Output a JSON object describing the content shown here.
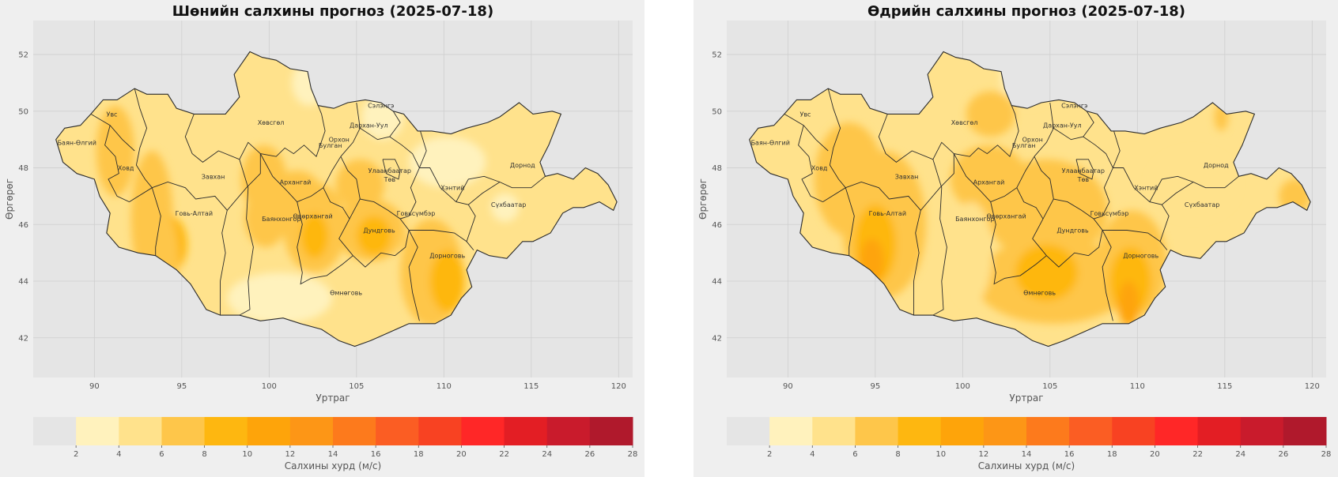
{
  "maps": [
    {
      "title": "Шөнийн салхины прогноз (2025-07-18)",
      "xlabel": "Уртраг",
      "ylabel": "Өргөрөг",
      "blobs": [
        {
          "lon": 91.2,
          "lat": 48.6,
          "rx": 1.1,
          "ry": 1.6,
          "level": 6
        },
        {
          "lon": 93.3,
          "lat": 46.2,
          "rx": 1.2,
          "ry": 2.4,
          "level": 6
        },
        {
          "lon": 94.3,
          "lat": 45.3,
          "rx": 1.0,
          "ry": 1.0,
          "level": 8
        },
        {
          "lon": 94.0,
          "lat": 44.8,
          "rx": 0.8,
          "ry": 1.6,
          "level": 6
        },
        {
          "lon": 99.7,
          "lat": 47.6,
          "rx": 1.3,
          "ry": 1.2,
          "level": 6
        },
        {
          "lon": 99.8,
          "lat": 46.2,
          "rx": 1.2,
          "ry": 1.0,
          "level": 6
        },
        {
          "lon": 101.6,
          "lat": 47.1,
          "rx": 1.4,
          "ry": 0.8,
          "level": 6
        },
        {
          "lon": 102.6,
          "lat": 45.9,
          "rx": 1.8,
          "ry": 1.6,
          "level": 6
        },
        {
          "lon": 102.6,
          "lat": 45.6,
          "rx": 0.8,
          "ry": 0.8,
          "level": 8
        },
        {
          "lon": 105.2,
          "lat": 47.4,
          "rx": 1.4,
          "ry": 0.9,
          "level": 6
        },
        {
          "lon": 105.8,
          "lat": 45.8,
          "rx": 2.0,
          "ry": 1.1,
          "level": 6
        },
        {
          "lon": 106.0,
          "lat": 45.6,
          "rx": 1.0,
          "ry": 0.7,
          "level": 8
        },
        {
          "lon": 109.3,
          "lat": 44.3,
          "rx": 1.8,
          "ry": 1.9,
          "level": 6
        },
        {
          "lon": 110.2,
          "lat": 44.0,
          "rx": 1.0,
          "ry": 1.1,
          "level": 8
        },
        {
          "lon": 102.3,
          "lat": 51.0,
          "rx": 1.0,
          "ry": 0.8,
          "level": 2
        },
        {
          "lon": 106.5,
          "lat": 49.8,
          "rx": 1.2,
          "ry": 0.8,
          "level": 2
        },
        {
          "lon": 110.2,
          "lat": 48.2,
          "rx": 2.2,
          "ry": 0.9,
          "level": 2
        },
        {
          "lon": 113.5,
          "lat": 46.6,
          "rx": 0.8,
          "ry": 0.5,
          "level": 2
        },
        {
          "lon": 100.6,
          "lat": 43.4,
          "rx": 3.0,
          "ry": 0.9,
          "level": 2
        }
      ],
      "colorbar": {
        "label": "Салхины хурд (м/с)"
      }
    },
    {
      "title": "Өдрийн салхины прогноз (2025-07-18)",
      "xlabel": "Уртраг",
      "ylabel": "Өргөрөг",
      "blobs": [
        {
          "lon": 93.5,
          "lat": 47.6,
          "rx": 2.0,
          "ry": 2.0,
          "level": 6
        },
        {
          "lon": 95.5,
          "lat": 46.0,
          "rx": 2.4,
          "ry": 2.6,
          "level": 6
        },
        {
          "lon": 95.0,
          "lat": 45.3,
          "rx": 1.2,
          "ry": 1.4,
          "level": 8
        },
        {
          "lon": 94.8,
          "lat": 44.7,
          "rx": 0.7,
          "ry": 0.8,
          "level": 10
        },
        {
          "lon": 101.5,
          "lat": 47.6,
          "rx": 2.2,
          "ry": 1.2,
          "level": 6
        },
        {
          "lon": 101.6,
          "lat": 49.9,
          "rx": 1.4,
          "ry": 0.8,
          "level": 6
        },
        {
          "lon": 104.8,
          "lat": 46.5,
          "rx": 3.5,
          "ry": 1.8,
          "level": 6
        },
        {
          "lon": 105.2,
          "lat": 44.0,
          "rx": 4.5,
          "ry": 1.5,
          "level": 6
        },
        {
          "lon": 104.8,
          "lat": 44.3,
          "rx": 1.8,
          "ry": 1.0,
          "level": 8
        },
        {
          "lon": 109.7,
          "lat": 44.6,
          "rx": 2.0,
          "ry": 1.9,
          "level": 6
        },
        {
          "lon": 109.6,
          "lat": 44.0,
          "rx": 1.2,
          "ry": 1.2,
          "level": 8
        },
        {
          "lon": 109.5,
          "lat": 43.2,
          "rx": 0.6,
          "ry": 0.8,
          "level": 10
        },
        {
          "lon": 114.8,
          "lat": 49.8,
          "rx": 0.4,
          "ry": 0.5,
          "level": 6
        },
        {
          "lon": 119.0,
          "lat": 47.0,
          "rx": 0.9,
          "ry": 0.6,
          "level": 6
        },
        {
          "lon": 100.5,
          "lat": 45.0,
          "rx": 1.2,
          "ry": 1.8,
          "level": 4
        },
        {
          "lon": 113.2,
          "lat": 47.4,
          "rx": 2.5,
          "ry": 1.2,
          "level": 4
        },
        {
          "lon": 103.8,
          "lat": 51.0,
          "rx": 1.4,
          "ry": 0.8,
          "level": 4
        },
        {
          "lon": 102.6,
          "lat": 51.2,
          "rx": 0.4,
          "ry": 0.6,
          "level": 2
        }
      ],
      "colorbar": {
        "label": "Салхины хурд (м/с)"
      }
    }
  ],
  "axes": {
    "lon_ticks": [
      "90",
      "95",
      "100",
      "105",
      "110",
      "115",
      "120"
    ],
    "lat_ticks": [
      "42",
      "44",
      "46",
      "48",
      "50",
      "52"
    ]
  },
  "regions": [
    {
      "name": "Увс",
      "lon": 91.0,
      "lat": 49.9
    },
    {
      "name": "Баян-Өлгий",
      "lon": 89.0,
      "lat": 48.9
    },
    {
      "name": "Ховд",
      "lon": 91.8,
      "lat": 48.0
    },
    {
      "name": "Завхан",
      "lon": 96.8,
      "lat": 47.7
    },
    {
      "name": "Говь-Алтай",
      "lon": 95.7,
      "lat": 46.4
    },
    {
      "name": "Хөвсгөл",
      "lon": 100.1,
      "lat": 49.6
    },
    {
      "name": "Архангай",
      "lon": 101.5,
      "lat": 47.5
    },
    {
      "name": "Баянхонгор",
      "lon": 100.7,
      "lat": 46.2
    },
    {
      "name": "Өвөрхангай",
      "lon": 102.5,
      "lat": 46.3
    },
    {
      "name": "Орхон",
      "lon": 104.0,
      "lat": 49.0
    },
    {
      "name": "Булган",
      "lon": 103.5,
      "lat": 48.8
    },
    {
      "name": "Сэлэнгэ",
      "lon": 106.4,
      "lat": 50.2
    },
    {
      "name": "Дархан-Уул",
      "lon": 105.7,
      "lat": 49.5
    },
    {
      "name": "Улаанбаатар",
      "lon": 106.9,
      "lat": 47.9
    },
    {
      "name": "Төв",
      "lon": 106.9,
      "lat": 47.6
    },
    {
      "name": "Хэнтий",
      "lon": 110.5,
      "lat": 47.3
    },
    {
      "name": "Дорнод",
      "lon": 114.5,
      "lat": 48.1
    },
    {
      "name": "Сүхбаатар",
      "lon": 113.7,
      "lat": 46.7
    },
    {
      "name": "Говьсүмбэр",
      "lon": 108.4,
      "lat": 46.4
    },
    {
      "name": "Дундговь",
      "lon": 106.3,
      "lat": 45.8
    },
    {
      "name": "Дорноговь",
      "lon": 110.2,
      "lat": 44.9
    },
    {
      "name": "Өмнөговь",
      "lon": 104.4,
      "lat": 43.6
    }
  ],
  "colorbar": {
    "ticks": [
      "2",
      "4",
      "6",
      "8",
      "10",
      "12",
      "14",
      "16",
      "18",
      "20",
      "22",
      "24",
      "26",
      "28"
    ],
    "bounds": [
      0,
      2,
      4,
      6,
      8,
      10,
      12,
      14,
      16,
      18,
      20,
      22,
      24,
      26,
      28
    ],
    "colors": [
      "#e5e5e5",
      "#fff2bd",
      "#ffe28c",
      "#fec64a",
      "#feb710",
      "#fea40a",
      "#fd9616",
      "#fd7a1c",
      "#fb5d23",
      "#f84222",
      "#ff2727",
      "#e31e24",
      "#c91b2c",
      "#b0192c"
    ]
  },
  "base_level_color": "#ffe28c"
}
